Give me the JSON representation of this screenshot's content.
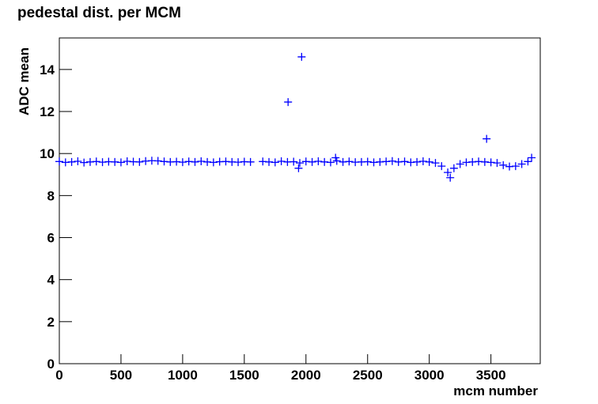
{
  "chart_data": {
    "type": "scatter",
    "title": "pedestal dist. per MCM",
    "x_label": "mcm number",
    "y_label": "ADC mean",
    "color": "#0000ff",
    "x": [
      0,
      50,
      100,
      150,
      200,
      250,
      300,
      350,
      400,
      450,
      500,
      550,
      600,
      650,
      700,
      750,
      800,
      850,
      900,
      950,
      1000,
      1050,
      1100,
      1150,
      1200,
      1250,
      1300,
      1350,
      1400,
      1450,
      1500,
      1550,
      1650,
      1700,
      1750,
      1800,
      1850,
      1855,
      1900,
      1940,
      1950,
      1965,
      2000,
      2050,
      2100,
      2150,
      2200,
      2240,
      2250,
      2300,
      2350,
      2400,
      2450,
      2500,
      2550,
      2600,
      2650,
      2700,
      2750,
      2800,
      2850,
      2900,
      2950,
      3000,
      3050,
      3100,
      3150,
      3170,
      3200,
      3250,
      3300,
      3350,
      3400,
      3450,
      3465,
      3500,
      3550,
      3600,
      3650,
      3700,
      3750,
      3800,
      3830
    ],
    "values": [
      9.62,
      9.58,
      9.6,
      9.63,
      9.57,
      9.6,
      9.62,
      9.59,
      9.61,
      9.6,
      9.58,
      9.63,
      9.61,
      9.6,
      9.64,
      9.66,
      9.65,
      9.62,
      9.6,
      9.61,
      9.59,
      9.62,
      9.6,
      9.63,
      9.6,
      9.58,
      9.61,
      9.62,
      9.6,
      9.59,
      9.61,
      9.6,
      9.62,
      9.6,
      9.58,
      9.63,
      9.6,
      12.45,
      9.61,
      9.3,
      9.55,
      14.6,
      9.62,
      9.6,
      9.63,
      9.6,
      9.58,
      9.8,
      9.65,
      9.6,
      9.62,
      9.59,
      9.6,
      9.61,
      9.58,
      9.6,
      9.62,
      9.64,
      9.6,
      9.62,
      9.58,
      9.6,
      9.63,
      9.6,
      9.55,
      9.4,
      9.1,
      8.85,
      9.3,
      9.5,
      9.58,
      9.6,
      9.62,
      9.6,
      10.7,
      9.58,
      9.55,
      9.45,
      9.38,
      9.4,
      9.5,
      9.62,
      9.8
    ],
    "xlim": [
      0,
      3900
    ],
    "ylim": [
      0,
      15.5
    ],
    "xticks": [
      0,
      500,
      1000,
      1500,
      2000,
      2500,
      3000,
      3500
    ],
    "yticks": [
      0,
      2,
      4,
      6,
      8,
      10,
      12,
      14
    ]
  }
}
